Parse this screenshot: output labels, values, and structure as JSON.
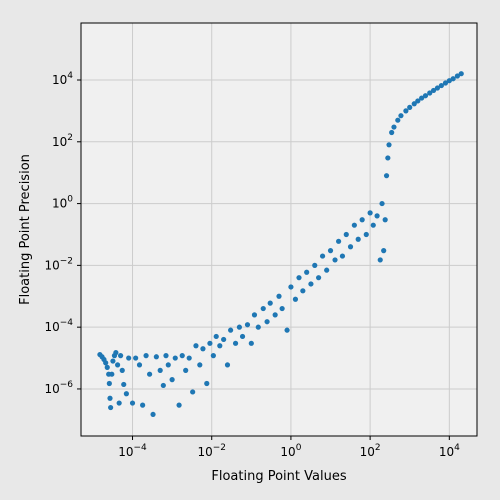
{
  "chart_data": {
    "type": "scatter",
    "title": "",
    "xlabel": "Floating Point Values",
    "ylabel": "Floating Point Precision",
    "xscale": "log",
    "yscale": "log",
    "xlim": [
      5e-06,
      50000
    ],
    "ylim": [
      3e-08,
      700000
    ],
    "x_ticks": [
      {
        "value": 0.0001,
        "base": "10",
        "exp": "−4"
      },
      {
        "value": 0.01,
        "base": "10",
        "exp": "−2"
      },
      {
        "value": 1,
        "base": "10",
        "exp": "0"
      },
      {
        "value": 100,
        "base": "10",
        "exp": "2"
      },
      {
        "value": 10000,
        "base": "10",
        "exp": "4"
      }
    ],
    "y_ticks": [
      {
        "value": 1e-06,
        "base": "10",
        "exp": "−6"
      },
      {
        "value": 0.0001,
        "base": "10",
        "exp": "−4"
      },
      {
        "value": 0.01,
        "base": "10",
        "exp": "−2"
      },
      {
        "value": 1,
        "base": "10",
        "exp": "0"
      },
      {
        "value": 100,
        "base": "10",
        "exp": "2"
      },
      {
        "value": 10000,
        "base": "10",
        "exp": "4"
      }
    ],
    "grid": true,
    "colors": {
      "marker": "#1f77b4",
      "background": "#e8e8e8",
      "plot_bg": "#f0f0f0",
      "grid": "#cccccc"
    },
    "series": [
      {
        "x": [
          1.5e-05,
          1.7e-05,
          1.9e-05,
          2.1e-05,
          2.3e-05,
          2.5e-05,
          2.6e-05,
          2.7e-05,
          2.8e-05,
          3e-05,
          3.2e-05,
          3.5e-05,
          3.8e-05,
          4.2e-05,
          4.6e-05,
          5e-05,
          5.5e-05,
          6e-05,
          7e-05,
          8e-05,
          0.0001,
          0.00012,
          0.00015,
          0.00018,
          0.00022,
          0.00027,
          0.00033,
          0.0004,
          0.0005,
          0.0006,
          0.0007,
          0.0008,
          0.001,
          0.0012,
          0.0015,
          0.0018,
          0.0022,
          0.0027,
          0.0033,
          0.004,
          0.005,
          0.006,
          0.0075,
          0.009,
          0.011,
          0.013,
          0.016,
          0.02,
          0.025,
          0.03,
          0.04,
          0.05,
          0.06,
          0.08,
          0.1,
          0.12,
          0.15,
          0.2,
          0.25,
          0.3,
          0.4,
          0.5,
          0.6,
          0.8,
          1.0,
          1.3,
          1.6,
          2.0,
          2.5,
          3.2,
          4.0,
          5.0,
          6.3,
          8.0,
          10,
          13,
          16,
          20,
          25,
          32,
          40,
          50,
          63,
          80,
          100,
          120,
          150,
          180,
          200,
          220,
          240,
          260,
          280,
          300,
          350,
          400,
          500,
          600,
          800,
          1000,
          1300,
          1600,
          2000,
          2500,
          3200,
          4000,
          5000,
          6300,
          8000,
          10000,
          12500,
          16000,
          20000
        ],
        "y": [
          1.3e-05,
          1.1e-05,
          9e-06,
          7e-06,
          5e-06,
          3e-06,
          1.5e-06,
          5e-07,
          2.5e-07,
          3e-06,
          8e-06,
          1.2e-05,
          1.5e-05,
          6e-06,
          3.5e-07,
          1.2e-05,
          4e-06,
          1.4e-06,
          7e-07,
          1e-05,
          3.5e-07,
          1e-05,
          6e-06,
          3e-07,
          1.2e-05,
          3e-06,
          1.5e-07,
          1.1e-05,
          4e-06,
          1.3e-06,
          1.2e-05,
          6e-06,
          2e-06,
          1e-05,
          3e-07,
          1.2e-05,
          4e-06,
          1e-05,
          8e-07,
          2.5e-05,
          6e-06,
          2e-05,
          1.5e-06,
          3e-05,
          1.2e-05,
          5e-05,
          2.5e-05,
          4e-05,
          6e-06,
          8e-05,
          3e-05,
          0.0001,
          5e-05,
          0.00012,
          3e-05,
          0.00025,
          0.0001,
          0.0004,
          0.00015,
          0.0006,
          0.00025,
          0.001,
          0.0004,
          8e-05,
          0.002,
          0.0008,
          0.004,
          0.0015,
          0.006,
          0.0025,
          0.01,
          0.004,
          0.02,
          0.007,
          0.03,
          0.015,
          0.06,
          0.02,
          0.1,
          0.04,
          0.2,
          0.07,
          0.3,
          0.1,
          0.5,
          0.2,
          0.4,
          0.015,
          1.0,
          0.03,
          0.3,
          8,
          30,
          80,
          200,
          300,
          500,
          700,
          1000,
          1300,
          1700,
          2100,
          2600,
          3100,
          3800,
          4600,
          5500,
          6600,
          8000,
          9500,
          11000,
          13500,
          16000
        ]
      }
    ]
  }
}
